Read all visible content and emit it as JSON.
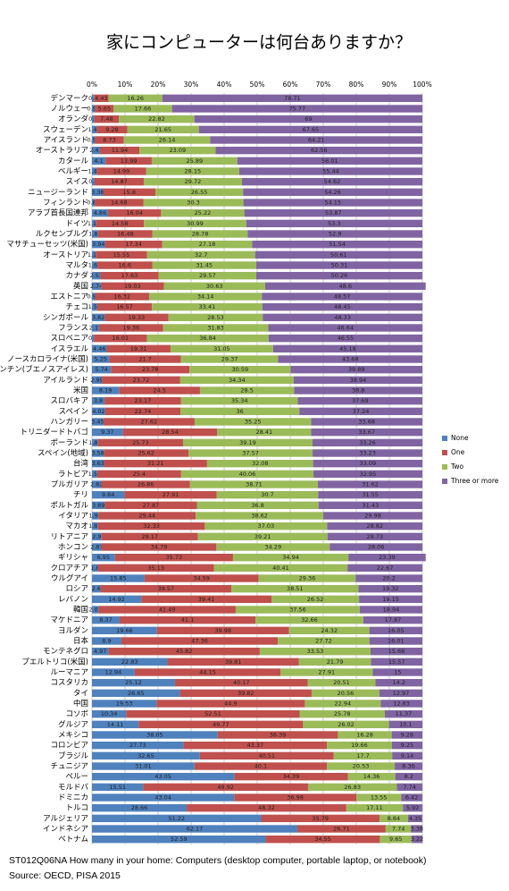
{
  "chart_data": {
    "type": "stacked-bar-horizontal",
    "title": "家にコンピューターは何台ありますか？",
    "categories": [
      "デンマーク",
      "ノルウェー",
      "オランダ",
      "スウェーデン",
      "アイスランド",
      "オーストラリア",
      "カタール",
      "ベルギー",
      "スイス",
      "ニュージーランド",
      "フィンランド",
      "アラブ首長国連邦",
      "ドイツ",
      "ルクセンブルグ",
      "マサチューセッツ(米国)",
      "オーストリア",
      "マルタ",
      "カナダ",
      "英国",
      "エストニア",
      "チェコ",
      "シンガポール",
      "フランス",
      "スロベニア",
      "イスラエル",
      "ノースカロライナ(米国)",
      "アルゼンチン(ブエノスアイレス)",
      "アイルランド",
      "米国",
      "スロバキア",
      "スペイン",
      "ハンガリー",
      "トリニダードトバゴ",
      "ポーランド",
      "スペイン(地域)",
      "台湾",
      "ラトビア",
      "ブルガリア",
      "チリ",
      "ポルトガル",
      "イタリア",
      "マカオ",
      "リトアニア",
      "ホンコン",
      "ギリシャ",
      "クロアチア",
      "ウルグアイ",
      "ロシア",
      "レバノン",
      "韓国",
      "マケドニア",
      "ヨルダン",
      "日本",
      "モンテネグロ",
      "プエルトリコ(米国)",
      "ルーマニア",
      "コスタリカ",
      "タイ",
      "中国",
      "コソボ",
      "グルジア",
      "メキシコ",
      "コロンビア",
      "ブラジル",
      "チュニジア",
      "ペルー",
      "モルドバ",
      "ドミニカ",
      "トルコ",
      "アルジェリア",
      "インドネシア",
      "ベトナム"
    ],
    "series": [
      {
        "name": "None",
        "color": "#4f81bd",
        "values": [
          0.6,
          0.92,
          0.7,
          1.43,
          0.92,
          2.41,
          4.1,
          1.43,
          0.8,
          3.38,
          0.86,
          4.86,
          1.13,
          1.84,
          3.94,
          1.13,
          1.64,
          2.53,
          2.74,
          0.97,
          1.58,
          3.82,
          2.17,
          0.6,
          4.46,
          5.25,
          5.74,
          2.99,
          8.19,
          3.8,
          4.02,
          3.45,
          9.37,
          1.83,
          3.58,
          3.63,
          1.58,
          2.82,
          9.84,
          3.89,
          1.96,
          1.82,
          2.9,
          2.87,
          6.95,
          1.8,
          15.85,
          2.6,
          14.92,
          2.01,
          8.37,
          19.66,
          8.9,
          4.97,
          22.83,
          12.94,
          25.12,
          26.65,
          19.53,
          10.34,
          14.11,
          38.05,
          27.73,
          32.65,
          31.01,
          43.05,
          15.51,
          43.04,
          28.66,
          51.22,
          62.17,
          52.59
        ]
      },
      {
        "name": "One",
        "color": "#c0504d",
        "values": [
          4.43,
          5.65,
          7.48,
          9.28,
          8.73,
          11.94,
          13.99,
          14.99,
          14.87,
          15.8,
          14.68,
          16.04,
          14.58,
          16.48,
          17.34,
          15.55,
          16.6,
          17.63,
          19.03,
          16.32,
          16.57,
          19.33,
          19.36,
          16.01,
          19.31,
          21.7,
          23.78,
          23.72,
          24.5,
          23.17,
          22.74,
          27.62,
          28.54,
          25.73,
          25.62,
          31.21,
          25.4,
          26.86,
          27.91,
          27.87,
          29.44,
          32.33,
          29.17,
          34.79,
          35.73,
          35.13,
          34.59,
          39.57,
          39.41,
          41.49,
          41.1,
          39.98,
          47.36,
          45.82,
          39.81,
          44.15,
          40.17,
          39.82,
          44.9,
          52.51,
          49.77,
          36.39,
          43.37,
          40.51,
          40.1,
          34.39,
          49.92,
          36.98,
          48.32,
          35.79,
          26.71,
          34.55
        ]
      },
      {
        "name": "Two",
        "color": "#9bbb59",
        "values": [
          16.26,
          17.66,
          22.82,
          21.65,
          26.14,
          23.09,
          25.89,
          28.15,
          29.72,
          26.55,
          30.3,
          25.22,
          30.99,
          28.78,
          27.18,
          32.7,
          31.45,
          29.57,
          30.63,
          34.14,
          33.41,
          28.53,
          31.83,
          36.84,
          31.05,
          29.37,
          30.59,
          34.34,
          28.5,
          35.34,
          36,
          35.25,
          28.41,
          39.19,
          37.57,
          32.08,
          40.06,
          38.71,
          30.7,
          36.8,
          38.62,
          37.03,
          39.21,
          34.29,
          34.94,
          40.41,
          29.36,
          38.51,
          26.52,
          37.56,
          32.66,
          24.32,
          27.72,
          33.53,
          21.79,
          27.91,
          20.51,
          20.56,
          22.94,
          25.78,
          26.02,
          16.28,
          19.66,
          17.7,
          20.53,
          14.36,
          26.83,
          13.55,
          17.11,
          8.64,
          7.74,
          9.65
        ]
      },
      {
        "name": "Three or more",
        "color": "#8064a2",
        "values": [
          78.71,
          75.77,
          69,
          67.65,
          64.21,
          62.56,
          56.01,
          55.44,
          54.62,
          54.26,
          54.15,
          53.87,
          53.3,
          52.9,
          51.54,
          50.61,
          50.31,
          50.26,
          48.6,
          48.57,
          48.45,
          48.33,
          46.64,
          46.55,
          45.18,
          43.68,
          39.89,
          38.94,
          38.8,
          37.69,
          37.24,
          33.68,
          33.67,
          33.26,
          33.23,
          33.09,
          32.95,
          31.62,
          31.55,
          31.43,
          29.98,
          28.82,
          28.73,
          28.06,
          23.39,
          22.67,
          20.2,
          19.32,
          19.15,
          18.94,
          17.87,
          16.05,
          16.01,
          15.68,
          15.57,
          15,
          14.2,
          12.97,
          12.63,
          11.37,
          10.1,
          9.28,
          9.25,
          9.14,
          8.36,
          8.2,
          7.74,
          6.42,
          5.92,
          4.35,
          3.38,
          3.22
        ]
      }
    ],
    "xlim": [
      0,
      100
    ],
    "xticks": [
      {
        "value": 0,
        "label": "0%"
      },
      {
        "value": 10,
        "label": "10%"
      },
      {
        "value": 20,
        "label": "20%"
      },
      {
        "value": 30,
        "label": "30%"
      },
      {
        "value": 40,
        "label": "40%"
      },
      {
        "value": 50,
        "label": "50%"
      },
      {
        "value": 60,
        "label": "60%"
      },
      {
        "value": 70,
        "label": "70%"
      },
      {
        "value": 80,
        "label": "80%"
      },
      {
        "value": 90,
        "label": "90%"
      },
      {
        "value": 100,
        "label": "100%"
      }
    ],
    "grid": true,
    "legend": "right",
    "caption": "ST012Q06NA How many in your home: Computers (desktop computer, portable laptop, or notebook)",
    "source": "Source: OECD, PISA 2015"
  }
}
